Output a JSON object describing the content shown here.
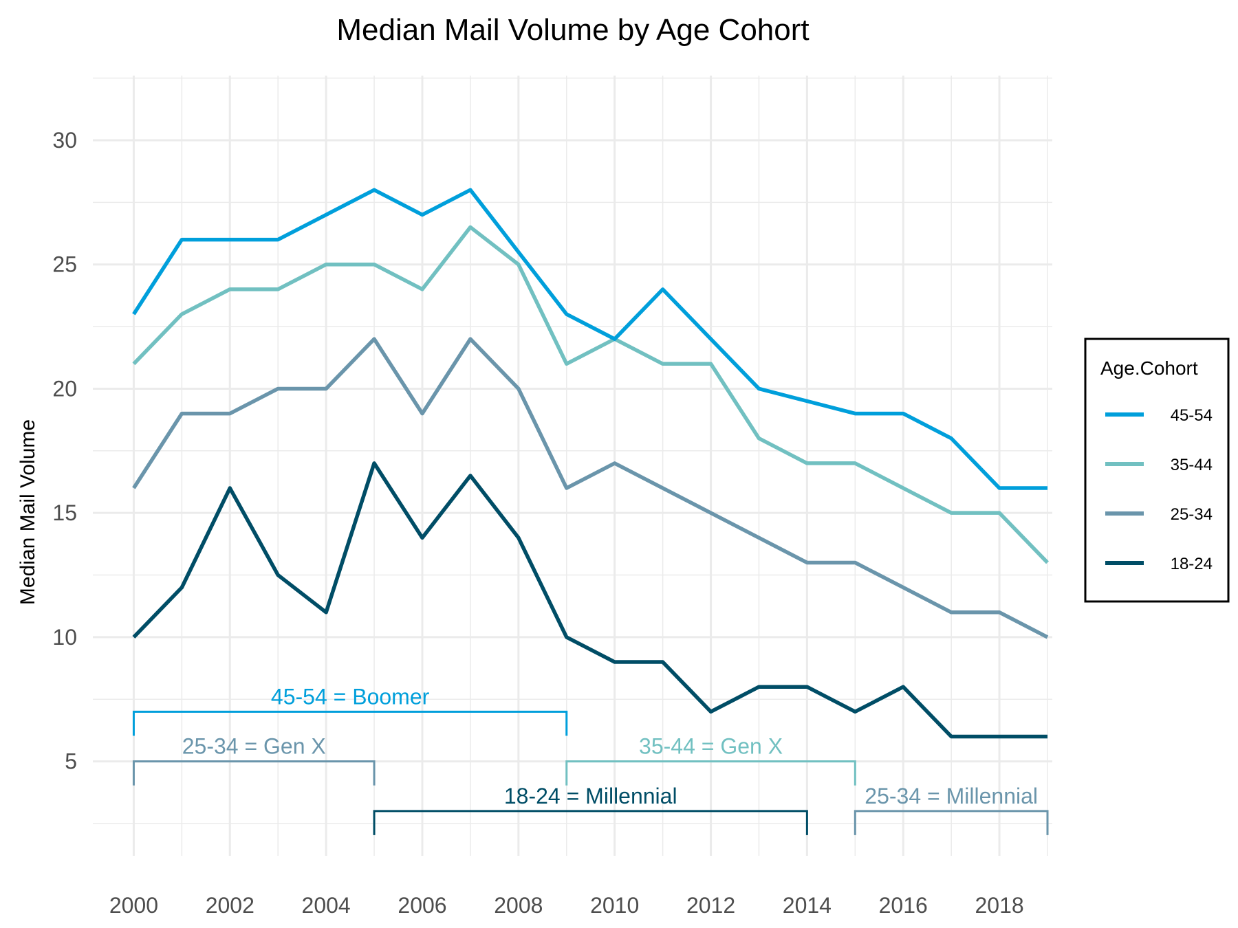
{
  "chart_data": {
    "type": "line",
    "title": "Median Mail Volume by Age Cohort",
    "xlabel": "",
    "ylabel": "Median Mail Volume",
    "x": [
      2000,
      2001,
      2002,
      2003,
      2004,
      2005,
      2006,
      2007,
      2008,
      2009,
      2010,
      2011,
      2012,
      2013,
      2014,
      2015,
      2016,
      2017,
      2018,
      2019
    ],
    "x_ticks": [
      "2000",
      "2002",
      "2004",
      "2006",
      "2008",
      "2010",
      "2012",
      "2014",
      "2016",
      "2018"
    ],
    "y_ticks": [
      "5",
      "10",
      "15",
      "20",
      "25",
      "30"
    ],
    "xlim": [
      1999.15,
      2019.1
    ],
    "ylim": [
      1.2,
      32.6
    ],
    "grid": true,
    "legend": {
      "title": "Age.Cohort",
      "position": "right"
    },
    "series": [
      {
        "name": "45-54",
        "color": "#009fdb",
        "values": [
          23,
          26,
          26,
          26,
          27,
          28,
          27,
          28,
          25.5,
          23,
          22,
          24,
          22,
          20,
          19.5,
          19,
          19,
          18,
          16,
          16
        ]
      },
      {
        "name": "35-44",
        "color": "#71c0c1",
        "values": [
          21,
          23,
          24,
          24,
          25,
          25,
          24,
          26.5,
          25,
          21,
          22,
          21,
          21,
          18,
          17,
          17,
          16,
          15,
          15,
          13
        ]
      },
      {
        "name": "25-34",
        "color": "#6a95ab",
        "values": [
          16,
          19,
          19,
          20,
          20,
          22,
          19,
          22,
          20,
          16,
          17,
          16,
          15,
          14,
          13,
          13,
          12,
          11,
          11,
          10
        ]
      },
      {
        "name": "18-24",
        "color": "#004d66",
        "values": [
          10,
          12,
          16,
          12.5,
          11,
          17,
          14,
          16.5,
          14,
          10,
          9,
          9,
          7,
          8,
          8,
          7,
          8,
          6,
          6,
          6
        ]
      }
    ],
    "annotations": [
      {
        "text": "45-54 = Boomer",
        "x_start": 2000,
        "x_end": 2009,
        "y": 7,
        "color": "#009fdb"
      },
      {
        "text": "25-34 = Gen X",
        "x_start": 2000,
        "x_end": 2005,
        "y": 5,
        "color": "#6a95ab"
      },
      {
        "text": "35-44 = Gen X",
        "x_start": 2009,
        "x_end": 2015,
        "y": 5,
        "color": "#71c0c1"
      },
      {
        "text": "18-24 = Millennial",
        "x_start": 2005,
        "x_end": 2014,
        "y": 3,
        "color": "#004d66"
      },
      {
        "text": "25-34 = Millennial",
        "x_start": 2015,
        "x_end": 2019,
        "y": 3,
        "color": "#6a95ab"
      }
    ]
  }
}
